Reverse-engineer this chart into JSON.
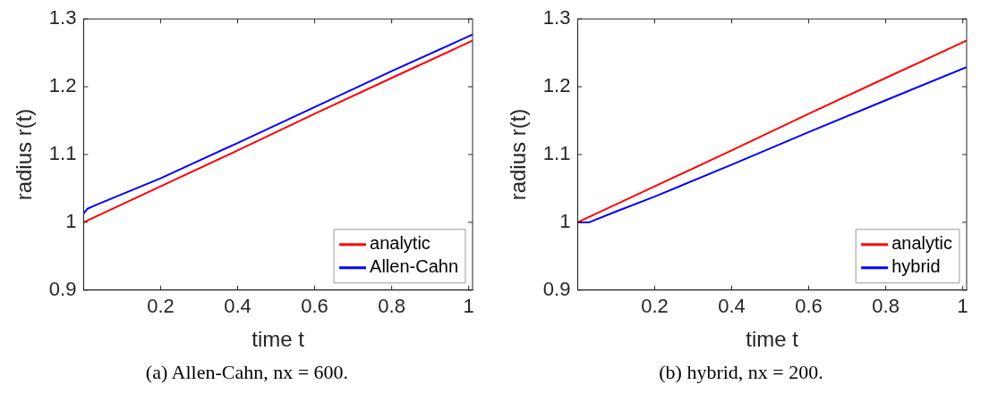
{
  "chart_data": [
    {
      "type": "line",
      "xlabel": "time t",
      "ylabel": "radius r(t)",
      "annotations": [
        "(a) Allen-Cahn, nx = 600."
      ],
      "xlim": [
        0,
        1.01
      ],
      "xticks": [
        0.2,
        0.4,
        0.6,
        0.8,
        1
      ],
      "ylim": [
        0.9,
        1.3
      ],
      "yticks": [
        0.9,
        1,
        1.1,
        1.2,
        1.3
      ],
      "grid": false,
      "legend": "bottom right",
      "marker": "none",
      "line_style": "solid",
      "series": [
        {
          "name": "analytic",
          "color": "#ff0000",
          "x": [
            0,
            0.2,
            0.4,
            0.6,
            0.8,
            1.01
          ],
          "values": [
            1.0,
            1.053,
            1.106,
            1.16,
            1.213,
            1.268
          ]
        },
        {
          "name": "Allen-Cahn",
          "color": "#0000ff",
          "x": [
            0,
            0.01,
            0.03,
            0.2,
            0.4,
            0.6,
            0.8,
            1.01
          ],
          "values": [
            1.013,
            1.02,
            1.025,
            1.065,
            1.117,
            1.17,
            1.223,
            1.277
          ]
        }
      ]
    },
    {
      "type": "line",
      "xlabel": "time t",
      "ylabel": "radius r(t)",
      "annotations": [
        "(b) hybrid, nx = 200."
      ],
      "xlim": [
        0,
        1.01
      ],
      "xticks": [
        0.2,
        0.4,
        0.6,
        0.8,
        1
      ],
      "ylim": [
        0.9,
        1.3
      ],
      "yticks": [
        0.9,
        1,
        1.1,
        1.2,
        1.3
      ],
      "grid": false,
      "legend": "bottom right",
      "marker": "none",
      "line_style": "solid",
      "series": [
        {
          "name": "analytic",
          "color": "#ff0000",
          "x": [
            0,
            0.2,
            0.4,
            0.6,
            0.8,
            1.01
          ],
          "values": [
            1.0,
            1.053,
            1.106,
            1.16,
            1.213,
            1.268
          ]
        },
        {
          "name": "hybrid",
          "color": "#0000ff",
          "x": [
            0,
            0.03,
            0.1,
            0.2,
            0.4,
            0.6,
            0.8,
            1.01
          ],
          "values": [
            1.0,
            1.0,
            1.016,
            1.038,
            1.085,
            1.133,
            1.18,
            1.229
          ]
        }
      ]
    }
  ]
}
